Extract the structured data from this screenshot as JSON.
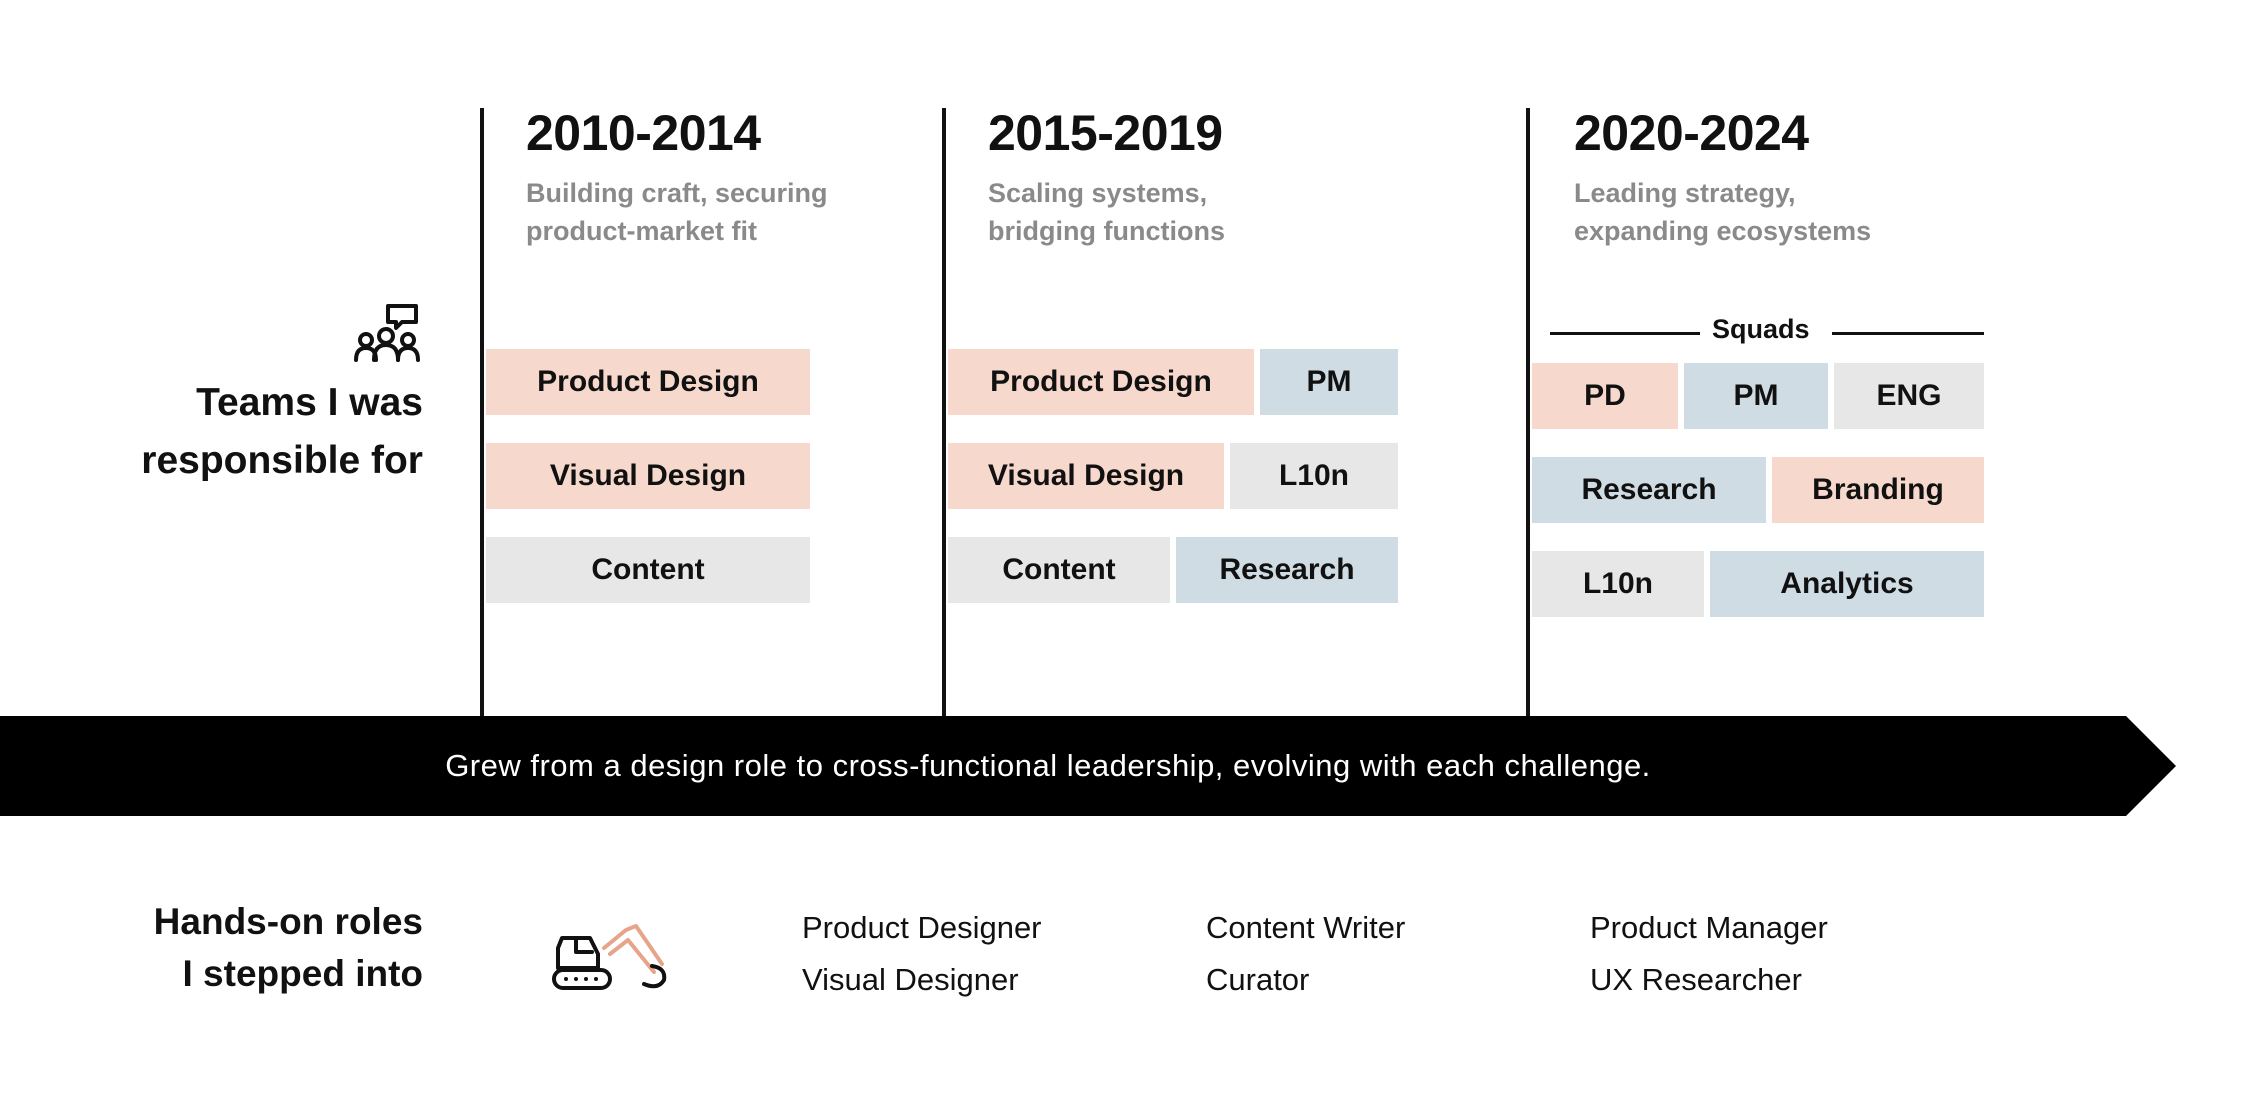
{
  "periods": [
    {
      "title": "2010-2014",
      "subtitle_line1": "Building craft, securing",
      "subtitle_line2": "product-market fit",
      "teams": [
        "Product Design",
        "Visual Design",
        "Content"
      ]
    },
    {
      "title": "2015-2019",
      "subtitle_line1": "Scaling systems,",
      "subtitle_line2": "bridging functions",
      "teams": [
        "Product Design",
        "PM",
        "Visual Design",
        "L10n",
        "Content",
        "Research"
      ]
    },
    {
      "title": "2020-2024",
      "subtitle_line1": "Leading strategy,",
      "subtitle_line2": "expanding ecosystems",
      "group_label": "Squads",
      "teams": [
        "PD",
        "PM",
        "ENG",
        "Research",
        "Branding",
        "L10n",
        "Analytics"
      ]
    }
  ],
  "teams_label": {
    "line1": "Teams I was",
    "line2": "responsible for",
    "icon": "team-chat-icon"
  },
  "banner_text": "Grew from a design role to cross-functional leadership, evolving with each challenge.",
  "roles_label": {
    "line1": "Hands-on roles",
    "line2": "I stepped into",
    "icon": "excavator-icon"
  },
  "roles": [
    [
      "Product Designer",
      "Visual Designer"
    ],
    [
      "Content Writer",
      "Curator"
    ],
    [
      "Product Manager",
      "UX Researcher"
    ]
  ],
  "colors": {
    "design": "#f6d8cc",
    "management": "#cfdce4",
    "other": "#e7e7e7",
    "banner": "#000000"
  }
}
